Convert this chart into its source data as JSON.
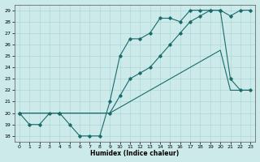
{
  "xlabel": "Humidex (Indice chaleur)",
  "xlim": [
    -0.5,
    23.5
  ],
  "ylim": [
    17.5,
    29.5
  ],
  "xticks": [
    0,
    1,
    2,
    3,
    4,
    5,
    6,
    7,
    8,
    9,
    10,
    11,
    12,
    13,
    14,
    15,
    16,
    17,
    18,
    19,
    20,
    21,
    22,
    23
  ],
  "yticks": [
    18,
    19,
    20,
    21,
    22,
    23,
    24,
    25,
    26,
    27,
    28,
    29
  ],
  "bg_color": "#cdeaea",
  "grid_color": "#b0d5d5",
  "line_color": "#1a6b6b",
  "line1_x": [
    0,
    1,
    2,
    3,
    4,
    5,
    6,
    7,
    8,
    9,
    10,
    11,
    12,
    13,
    14,
    15,
    16,
    17,
    18,
    19,
    20,
    21,
    22,
    23
  ],
  "line1_y": [
    20,
    19,
    19,
    20,
    20,
    19,
    18,
    18,
    18,
    21,
    25,
    26.5,
    26.5,
    27,
    28.3,
    28.3,
    28,
    29,
    29,
    29,
    29,
    23,
    22,
    22
  ],
  "line2_x": [
    0,
    4,
    9,
    10,
    11,
    12,
    13,
    14,
    15,
    16,
    17,
    18,
    19,
    20,
    21,
    22,
    23
  ],
  "line2_y": [
    20,
    20,
    20,
    21.5,
    23,
    23.5,
    24,
    25,
    26,
    27,
    28,
    28.5,
    29,
    29,
    28.5,
    29,
    29
  ],
  "line3_x": [
    0,
    1,
    2,
    3,
    4,
    5,
    6,
    7,
    8,
    9,
    10,
    11,
    12,
    13,
    14,
    15,
    16,
    17,
    18,
    19,
    20,
    21,
    22,
    23
  ],
  "line3_y": [
    20,
    20,
    20,
    20,
    20,
    20,
    20,
    20,
    20,
    20,
    20.5,
    21,
    21.5,
    22,
    22.5,
    23,
    23.5,
    24,
    24.5,
    25,
    25.5,
    22,
    22,
    22
  ]
}
